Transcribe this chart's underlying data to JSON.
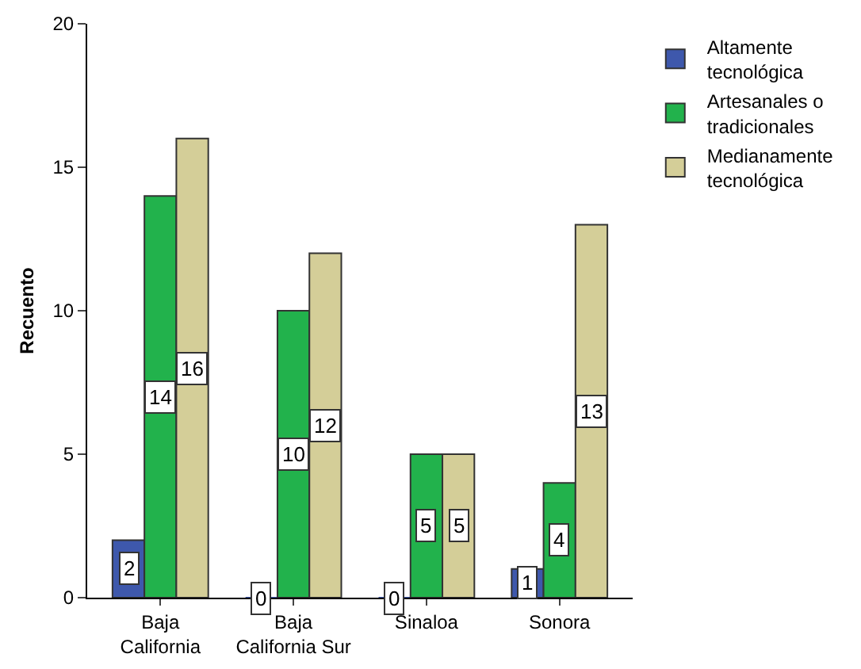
{
  "chart_data": {
    "type": "bar",
    "ylabel": "Recuento",
    "categories": [
      "Baja\nCalifornia",
      "Baja\nCalifornia Sur",
      "Sinaloa",
      "Sonora"
    ],
    "series": [
      {
        "name": "Altamente\ntecnológica",
        "color": "#3e58ac",
        "values": [
          2,
          0,
          0,
          1
        ]
      },
      {
        "name": "Artesanales o\ntradicionales",
        "color": "#22b24c",
        "values": [
          14,
          10,
          5,
          4
        ]
      },
      {
        "name": "Medianamente\ntecnológica",
        "color": "#d4ce98",
        "values": [
          16,
          12,
          5,
          13
        ]
      }
    ],
    "ylim": [
      0,
      20
    ],
    "yticks": [
      0,
      5,
      10,
      15,
      20
    ],
    "grid": false,
    "legend": "top right",
    "data_labels": true
  }
}
